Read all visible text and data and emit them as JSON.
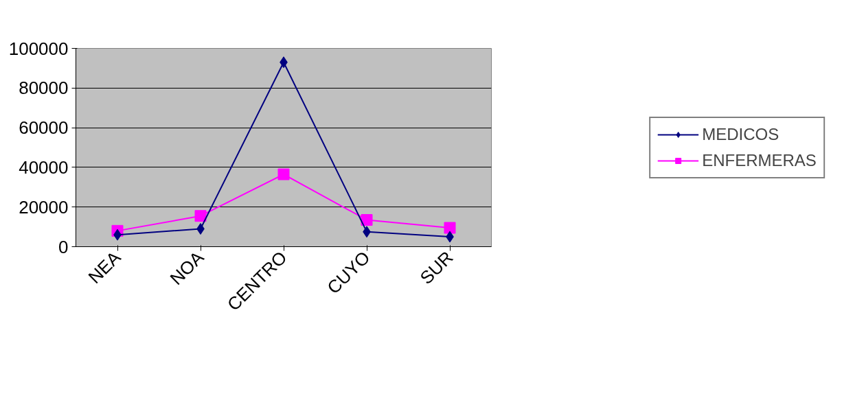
{
  "chart_data": {
    "type": "line",
    "categories": [
      "NEA",
      "NOA",
      "CENTRO",
      "CUYO",
      "SUR"
    ],
    "series": [
      {
        "name": "MEDICOS",
        "color": "#000080",
        "marker": "diamond",
        "values": [
          6000,
          9000,
          93000,
          7500,
          5000
        ]
      },
      {
        "name": "ENFERMERAS",
        "color": "#ff00ff",
        "marker": "square",
        "values": [
          8000,
          15500,
          36500,
          13500,
          9500
        ]
      }
    ],
    "ylim": [
      0,
      100000
    ],
    "yticks": [
      0,
      20000,
      40000,
      60000,
      80000,
      100000
    ],
    "grid": "y",
    "legend": "right"
  }
}
